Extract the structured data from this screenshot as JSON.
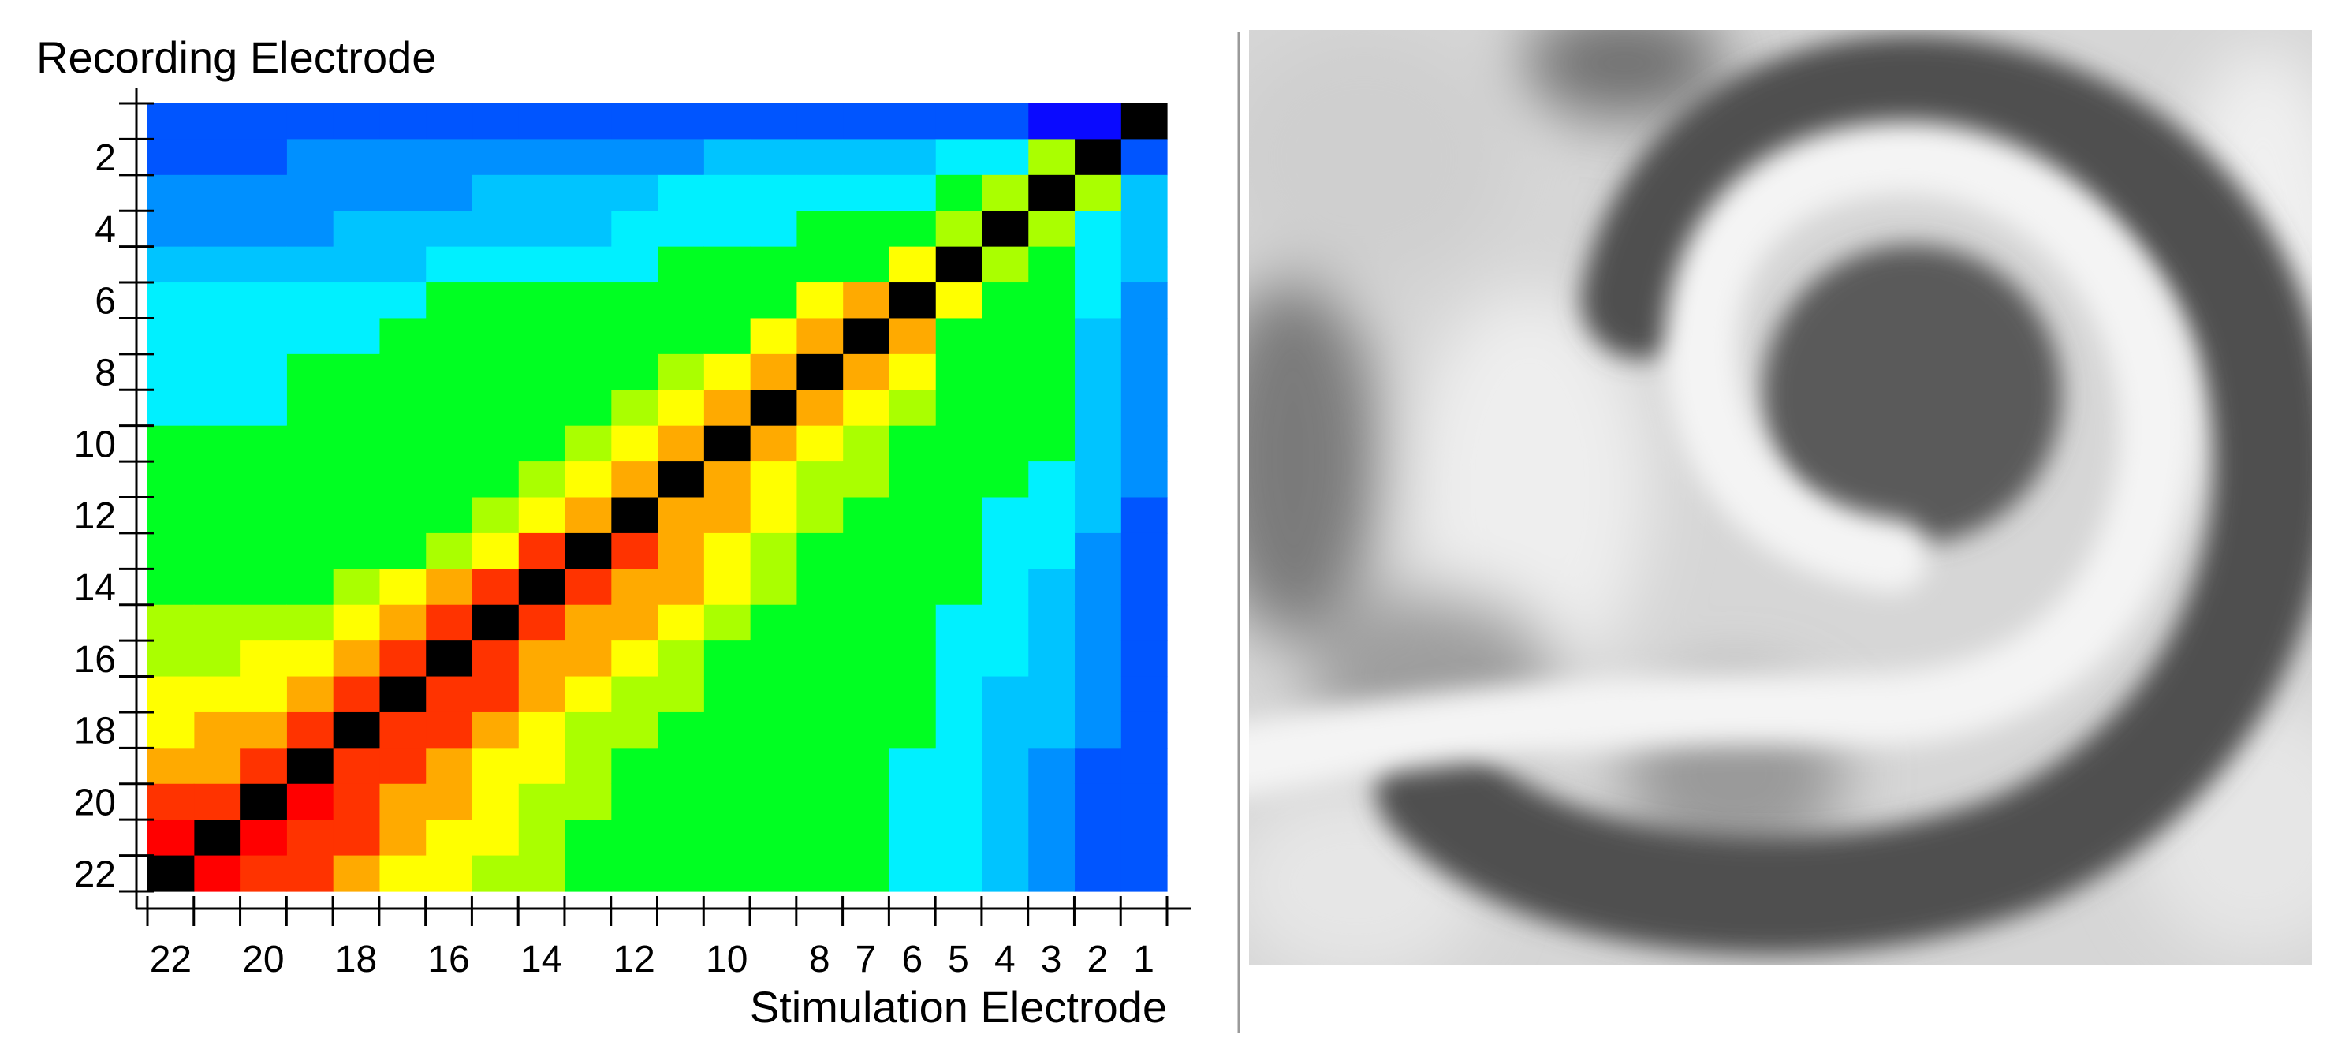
{
  "chart_data": {
    "type": "heatmap",
    "title": "",
    "ylabel": "Recording Electrode",
    "xlabel": "Stimulation Electrode",
    "n": 22,
    "x_order": "descending: 22 at left, 1 at right",
    "y_order": "ascending: 1 at top, 22 at bottom",
    "x_tick_labels": [
      "22",
      "20",
      "18",
      "16",
      "14",
      "12",
      "10",
      "8",
      "7",
      "6",
      "5",
      "4",
      "3",
      "2",
      "1"
    ],
    "y_tick_labels": [
      "2",
      "4",
      "6",
      "8",
      "10",
      "12",
      "14",
      "16",
      "18",
      "20",
      "22"
    ],
    "diagonal_color": "#000000",
    "colorscale": "jet (blue = low, green = mid, red = high), diagonal shown black",
    "rows_note": "matrix[r-1][s-1] = level 0-10 for recording electrode r, stimulation electrode s",
    "matrix": [
      [
        -1,
        0,
        0,
        1,
        1,
        1,
        1,
        1,
        1,
        1,
        1,
        1,
        1,
        1,
        1,
        1,
        1,
        1,
        1,
        1,
        1,
        1
      ],
      [
        1,
        -1,
        6,
        4,
        4,
        3,
        3,
        3,
        3,
        3,
        2,
        2,
        2,
        2,
        2,
        2,
        2,
        2,
        2,
        1,
        1,
        1
      ],
      [
        3,
        6,
        -1,
        6,
        5,
        4,
        4,
        4,
        4,
        4,
        4,
        3,
        3,
        3,
        3,
        2,
        2,
        2,
        2,
        2,
        2,
        2
      ],
      [
        3,
        4,
        6,
        -1,
        6,
        5,
        5,
        5,
        4,
        4,
        4,
        4,
        3,
        3,
        3,
        3,
        3,
        3,
        2,
        2,
        2,
        2
      ],
      [
        3,
        4,
        5,
        6,
        -1,
        7,
        5,
        5,
        5,
        5,
        5,
        4,
        4,
        4,
        4,
        4,
        3,
        3,
        3,
        3,
        3,
        3
      ],
      [
        2,
        4,
        5,
        5,
        7,
        -1,
        8,
        7,
        5,
        5,
        5,
        5,
        5,
        5,
        5,
        5,
        4,
        4,
        4,
        4,
        4,
        4
      ],
      [
        2,
        3,
        5,
        5,
        5,
        8,
        -1,
        8,
        7,
        5,
        5,
        5,
        5,
        5,
        5,
        5,
        5,
        4,
        4,
        4,
        4,
        4
      ],
      [
        2,
        3,
        5,
        5,
        5,
        7,
        8,
        -1,
        8,
        7,
        6,
        5,
        5,
        5,
        5,
        5,
        5,
        5,
        5,
        4,
        4,
        4
      ],
      [
        2,
        3,
        5,
        5,
        5,
        6,
        7,
        8,
        -1,
        8,
        7,
        6,
        5,
        5,
        5,
        5,
        5,
        5,
        5,
        4,
        4,
        4
      ],
      [
        2,
        3,
        5,
        5,
        5,
        5,
        6,
        7,
        8,
        -1,
        8,
        7,
        6,
        5,
        5,
        5,
        5,
        5,
        5,
        5,
        5,
        5
      ],
      [
        2,
        3,
        4,
        5,
        5,
        5,
        6,
        6,
        7,
        8,
        -1,
        8,
        7,
        6,
        5,
        5,
        5,
        5,
        5,
        5,
        5,
        5
      ],
      [
        1,
        3,
        4,
        4,
        5,
        5,
        5,
        6,
        7,
        8,
        8,
        -1,
        8,
        7,
        6,
        5,
        5,
        5,
        5,
        5,
        5,
        5
      ],
      [
        1,
        2,
        4,
        4,
        5,
        5,
        5,
        5,
        6,
        7,
        8,
        9,
        -1,
        9,
        7,
        6,
        5,
        5,
        5,
        5,
        5,
        5
      ],
      [
        1,
        2,
        3,
        4,
        5,
        5,
        5,
        5,
        6,
        7,
        8,
        8,
        9,
        -1,
        9,
        8,
        7,
        6,
        5,
        5,
        5,
        5
      ],
      [
        1,
        2,
        3,
        4,
        4,
        5,
        5,
        5,
        5,
        6,
        7,
        8,
        8,
        9,
        -1,
        9,
        8,
        7,
        6,
        6,
        6,
        6
      ],
      [
        1,
        2,
        3,
        4,
        4,
        5,
        5,
        5,
        5,
        5,
        6,
        7,
        8,
        8,
        9,
        -1,
        9,
        8,
        7,
        7,
        6,
        6
      ],
      [
        1,
        2,
        3,
        3,
        4,
        5,
        5,
        5,
        5,
        5,
        6,
        6,
        7,
        8,
        9,
        9,
        -1,
        9,
        8,
        7,
        7,
        7
      ],
      [
        1,
        2,
        3,
        3,
        4,
        5,
        5,
        5,
        5,
        5,
        5,
        6,
        6,
        7,
        8,
        9,
        9,
        -1,
        9,
        8,
        8,
        7
      ],
      [
        1,
        1,
        2,
        3,
        4,
        4,
        5,
        5,
        5,
        5,
        5,
        5,
        6,
        7,
        7,
        8,
        9,
        9,
        -1,
        9,
        8,
        8
      ],
      [
        1,
        1,
        2,
        3,
        4,
        4,
        5,
        5,
        5,
        5,
        5,
        5,
        6,
        6,
        7,
        8,
        8,
        9,
        10,
        -1,
        9,
        9
      ],
      [
        1,
        1,
        2,
        3,
        4,
        4,
        5,
        5,
        5,
        5,
        5,
        5,
        5,
        6,
        7,
        7,
        8,
        9,
        9,
        10,
        -1,
        10
      ],
      [
        1,
        1,
        2,
        3,
        4,
        4,
        5,
        5,
        5,
        5,
        5,
        5,
        5,
        6,
        6,
        7,
        7,
        8,
        9,
        9,
        10,
        -1
      ]
    ],
    "grid": false,
    "legend": "none"
  },
  "image_panel": {
    "description_visible": false,
    "background": "#d8d8d8"
  }
}
